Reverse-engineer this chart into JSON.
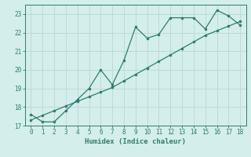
{
  "xlabel": "Humidex (Indice chaleur)",
  "x_data": [
    0,
    1,
    2,
    3,
    4,
    5,
    6,
    7,
    8,
    9,
    10,
    11,
    12,
    13,
    14,
    15,
    16,
    17,
    18
  ],
  "y_series1": [
    17.6,
    17.2,
    17.2,
    17.8,
    18.4,
    19.0,
    20.0,
    19.2,
    20.5,
    22.3,
    21.7,
    21.9,
    22.8,
    22.8,
    22.8,
    22.2,
    23.2,
    22.9,
    22.4
  ],
  "y_series2": [
    17.3,
    17.55,
    17.8,
    18.05,
    18.3,
    18.55,
    18.8,
    19.05,
    19.4,
    19.75,
    20.1,
    20.45,
    20.8,
    21.15,
    21.5,
    21.85,
    22.1,
    22.35,
    22.6
  ],
  "line_color": "#2e7d6e",
  "bg_color": "#d4eeec",
  "grid_color": "#b8d8d4",
  "ylim": [
    17,
    23.5
  ],
  "yticks": [
    17,
    18,
    19,
    20,
    21,
    22,
    23
  ],
  "xlim": [
    -0.5,
    18.5
  ],
  "xticks": [
    0,
    1,
    2,
    3,
    4,
    5,
    6,
    7,
    8,
    9,
    10,
    11,
    12,
    13,
    14,
    15,
    16,
    17,
    18
  ]
}
